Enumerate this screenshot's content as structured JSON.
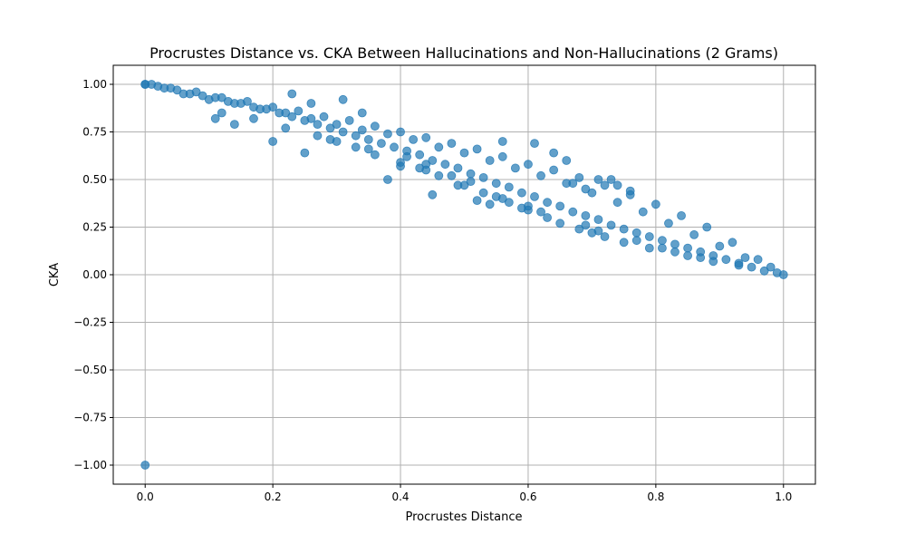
{
  "chart_data": {
    "type": "scatter",
    "title": "Procrustes Distance vs. CKA Between Hallucinations and Non-Hallucinations (2 Grams)",
    "xlabel": "Procrustes Distance",
    "ylabel": "CKA",
    "xlim": [
      -0.05,
      1.05
    ],
    "ylim": [
      -1.1,
      1.1
    ],
    "xticks": [
      0.0,
      0.2,
      0.4,
      0.6,
      0.8,
      1.0
    ],
    "xtick_labels": [
      "0.0",
      "0.2",
      "0.4",
      "0.6",
      "0.8",
      "1.0"
    ],
    "yticks": [
      -1.0,
      -0.75,
      -0.5,
      -0.25,
      0.0,
      0.25,
      0.5,
      0.75,
      1.0
    ],
    "ytick_labels": [
      "−1.00",
      "−0.75",
      "−0.50",
      "−0.25",
      "0.00",
      "0.25",
      "0.50",
      "0.75",
      "1.00"
    ],
    "grid": true,
    "legend": "none",
    "marker_color": "#1f77b4",
    "marker_alpha": 0.7,
    "series": [
      {
        "x": [
          0.0,
          0.0,
          0.01,
          0.02,
          0.03,
          0.05,
          0.07,
          0.09,
          0.11,
          0.13,
          0.15,
          0.17,
          0.19,
          0.21,
          0.23,
          0.25,
          0.27,
          0.29,
          0.31,
          0.33,
          0.35,
          0.37,
          0.39,
          0.41,
          0.43,
          0.45,
          0.47,
          0.49,
          0.51,
          0.53,
          0.55,
          0.57,
          0.59,
          0.61,
          0.63,
          0.65,
          0.67,
          0.69,
          0.71,
          0.73,
          0.75,
          0.77,
          0.79,
          0.81,
          0.83,
          0.85,
          0.87,
          0.89,
          0.91,
          0.93,
          0.95,
          0.97,
          0.99,
          1.0,
          0.04,
          0.08,
          0.12,
          0.16,
          0.2,
          0.24,
          0.28,
          0.32,
          0.36,
          0.4,
          0.44,
          0.48,
          0.52,
          0.56,
          0.6,
          0.64,
          0.68,
          0.72,
          0.76,
          0.8,
          0.84,
          0.88,
          0.92,
          0.96,
          0.06,
          0.1,
          0.14,
          0.18,
          0.22,
          0.26,
          0.3,
          0.34,
          0.38,
          0.42,
          0.46,
          0.5,
          0.54,
          0.58,
          0.62,
          0.66,
          0.7,
          0.74,
          0.78,
          0.82,
          0.86,
          0.9,
          0.94,
          0.98,
          0.12,
          0.17,
          0.22,
          0.27,
          0.3,
          0.33,
          0.36,
          0.4,
          0.43,
          0.46,
          0.5,
          0.53,
          0.55,
          0.57,
          0.6,
          0.63,
          0.65,
          0.68,
          0.7,
          0.72,
          0.75,
          0.79,
          0.83,
          0.87,
          0.23,
          0.26,
          0.31,
          0.34,
          0.38,
          0.41,
          0.44,
          0.45,
          0.49,
          0.52,
          0.54,
          0.56,
          0.59,
          0.61,
          0.64,
          0.66,
          0.67,
          0.69,
          0.71,
          0.73,
          0.74,
          0.76,
          0.11,
          0.14,
          0.2,
          0.25,
          0.29,
          0.35,
          0.4,
          0.44,
          0.48,
          0.51,
          0.56,
          0.6,
          0.62,
          0.69,
          0.71,
          0.77,
          0.81,
          0.85,
          0.89,
          0.93,
          0.0
        ],
        "y": [
          1.0,
          1.0,
          1.0,
          0.99,
          0.98,
          0.97,
          0.95,
          0.94,
          0.93,
          0.91,
          0.9,
          0.88,
          0.87,
          0.85,
          0.83,
          0.81,
          0.79,
          0.77,
          0.75,
          0.73,
          0.71,
          0.69,
          0.67,
          0.65,
          0.63,
          0.6,
          0.58,
          0.56,
          0.53,
          0.51,
          0.48,
          0.46,
          0.43,
          0.41,
          0.38,
          0.36,
          0.33,
          0.31,
          0.29,
          0.26,
          0.24,
          0.22,
          0.2,
          0.18,
          0.16,
          0.14,
          0.12,
          0.1,
          0.08,
          0.06,
          0.04,
          0.02,
          0.01,
          0.0,
          0.98,
          0.96,
          0.93,
          0.91,
          0.88,
          0.86,
          0.83,
          0.81,
          0.78,
          0.75,
          0.72,
          0.69,
          0.66,
          0.62,
          0.58,
          0.55,
          0.51,
          0.47,
          0.42,
          0.37,
          0.31,
          0.25,
          0.17,
          0.08,
          0.95,
          0.92,
          0.9,
          0.87,
          0.85,
          0.82,
          0.79,
          0.76,
          0.74,
          0.71,
          0.67,
          0.64,
          0.6,
          0.56,
          0.52,
          0.48,
          0.43,
          0.38,
          0.33,
          0.27,
          0.21,
          0.15,
          0.09,
          0.04,
          0.85,
          0.82,
          0.77,
          0.73,
          0.7,
          0.67,
          0.63,
          0.59,
          0.56,
          0.52,
          0.47,
          0.43,
          0.41,
          0.38,
          0.34,
          0.3,
          0.27,
          0.24,
          0.22,
          0.2,
          0.17,
          0.14,
          0.12,
          0.09,
          0.95,
          0.9,
          0.92,
          0.85,
          0.5,
          0.62,
          0.58,
          0.42,
          0.47,
          0.39,
          0.37,
          0.7,
          0.35,
          0.69,
          0.64,
          0.6,
          0.48,
          0.45,
          0.5,
          0.5,
          0.47,
          0.44,
          0.82,
          0.79,
          0.7,
          0.64,
          0.71,
          0.66,
          0.57,
          0.55,
          0.52,
          0.49,
          0.4,
          0.36,
          0.33,
          0.26,
          0.23,
          0.18,
          0.14,
          0.1,
          0.07,
          0.05,
          -1.0
        ]
      }
    ]
  }
}
